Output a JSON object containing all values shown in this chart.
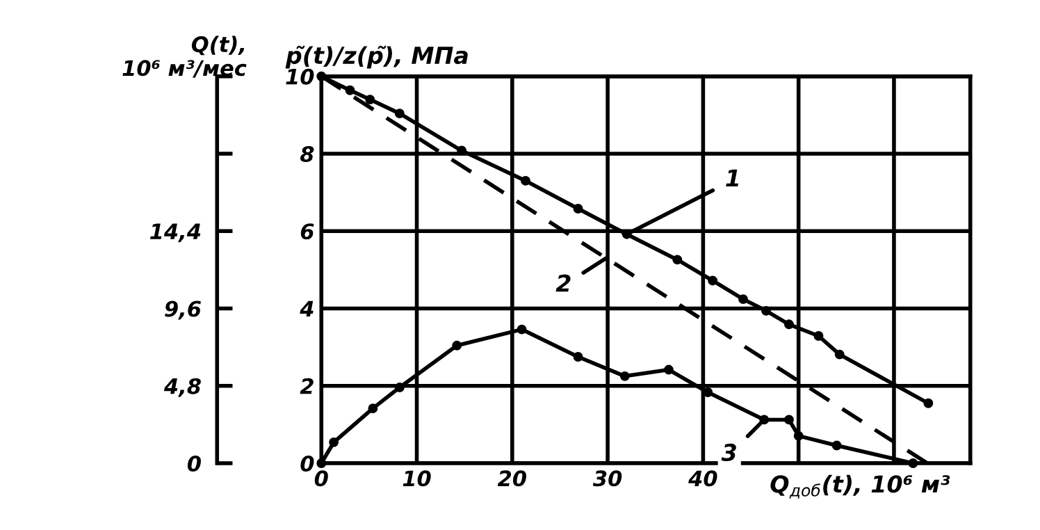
{
  "chart_data": {
    "type": "line",
    "xlabel": "Q$_{доб}$(t), 10⁶ м³",
    "ylabel": "p̃(t)/z(p̃), МПа",
    "y2label": "Q(t),\n10⁶ м³/мес",
    "xlim": [
      0,
      68
    ],
    "xticks": [
      0,
      10,
      20,
      30,
      40,
      {
        "value": 50,
        "label": null
      },
      {
        "value": 60,
        "label": null
      }
    ],
    "ylim": [
      0,
      10
    ],
    "yticks": [
      0,
      2,
      4,
      6,
      8,
      10
    ],
    "y2lim": [
      0,
      24
    ],
    "y2ticks": [
      0,
      {
        "value": 4.8,
        "label": "4,8"
      },
      {
        "value": 9.6,
        "label": "9,6"
      },
      {
        "value": 14.4,
        "label": "14,4"
      },
      {
        "value": 19.2,
        "label": null
      },
      {
        "value": 24,
        "label": null
      }
    ],
    "grid": true,
    "series": [
      {
        "name": "1",
        "color": "#000000",
        "marker": "circle",
        "line_style": "solid",
        "x": [
          0,
          3.0,
          5.1,
          8.2,
          14.7,
          21.4,
          26.9,
          32.0,
          37.3,
          41.0,
          44.2,
          46.6,
          49.0,
          52.1,
          54.3,
          63.6
        ],
        "values": [
          10,
          9.64,
          9.4,
          9.04,
          8.08,
          7.3,
          6.58,
          5.92,
          5.26,
          4.72,
          4.24,
          3.94,
          3.59,
          3.29,
          2.81,
          1.55
        ]
      },
      {
        "name": "2",
        "color": "#000000",
        "marker": "none",
        "line_style": "dashed",
        "x": [
          0,
          63.5
        ],
        "values": [
          10,
          0
        ]
      },
      {
        "name": "3",
        "color": "#000000",
        "marker": "circle",
        "line_style": "solid",
        "axis": "y2",
        "x": [
          0,
          1.3,
          5.4,
          8.2,
          14.2,
          21.0,
          26.9,
          31.8,
          36.4,
          40.5,
          46.4,
          49.0,
          50.0,
          54.0,
          62.0
        ],
        "values": [
          0,
          1.3,
          3.4,
          4.7,
          7.3,
          8.3,
          6.6,
          5.4,
          5.8,
          4.4,
          2.7,
          2.7,
          1.7,
          1.1,
          0
        ]
      }
    ]
  }
}
